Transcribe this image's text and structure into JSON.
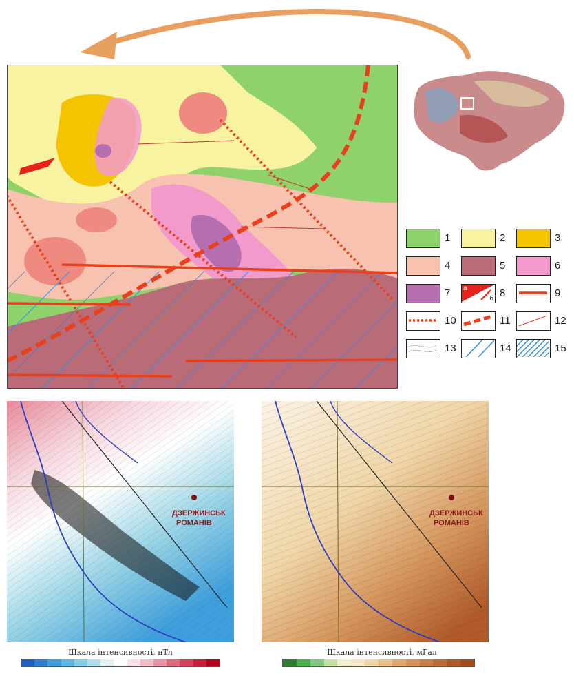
{
  "legend": {
    "items": [
      {
        "num": "1",
        "color": "#8fd16a",
        "kind": "fill"
      },
      {
        "num": "2",
        "color": "#f7f3a0",
        "kind": "fill"
      },
      {
        "num": "3",
        "color": "#f5c400",
        "kind": "fill"
      },
      {
        "num": "4",
        "color": "#f7c3b0",
        "kind": "fill"
      },
      {
        "num": "5",
        "color": "#b96b78",
        "kind": "fill"
      },
      {
        "num": "6",
        "color": "#f29acb",
        "kind": "fill"
      },
      {
        "num": "7",
        "color": "#b56fb0",
        "kind": "fill"
      },
      {
        "num": "8",
        "color": "#e5231b",
        "kind": "split",
        "sub_a": "а",
        "sub_b": "б"
      },
      {
        "num": "9",
        "color": "#e8401c",
        "kind": "solid-line"
      },
      {
        "num": "10",
        "color": "#e8401c",
        "kind": "dotted-line"
      },
      {
        "num": "11",
        "color": "#e8401c",
        "kind": "dashed-line"
      },
      {
        "num": "12",
        "color": "#e8401c",
        "kind": "thin-line"
      },
      {
        "num": "13",
        "color": "#888888",
        "kind": "contour"
      },
      {
        "num": "14",
        "color": "#2f8de0",
        "kind": "hatch-sparse"
      },
      {
        "num": "15",
        "color": "#2f8de0",
        "kind": "hatch-dense"
      }
    ]
  },
  "magnetic_map": {
    "town_label_line1": "ДЗЕРЖИНСЬК",
    "town_label_line2": "РОМАНІВ",
    "scale_title": "Шкала інтенсивності, нТл",
    "scale_colors": [
      "#1f5fbf",
      "#2f7fd0",
      "#3f9fdc",
      "#5fb8e0",
      "#86cde6",
      "#b2e0ee",
      "#e4f2f6",
      "#ffffff",
      "#f7e1e6",
      "#f0bcc8",
      "#e893a6",
      "#de6a80",
      "#d4425c",
      "#c81e38",
      "#b8001c"
    ]
  },
  "gravity_map": {
    "town_label_line1": "ДЗЕРЖИНСЬК",
    "town_label_line2": "РОМАНІВ",
    "scale_title": "Шкала інтенсивності, мГал",
    "scale_colors": [
      "#2e7d32",
      "#4caf50",
      "#81c784",
      "#c5e1a5",
      "#f1f1d0",
      "#f5e6c8",
      "#f0d6a8",
      "#e8c08a",
      "#deaa72",
      "#d4945c",
      "#c98048",
      "#bd6c38",
      "#b05a2a",
      "#a24a20"
    ]
  }
}
